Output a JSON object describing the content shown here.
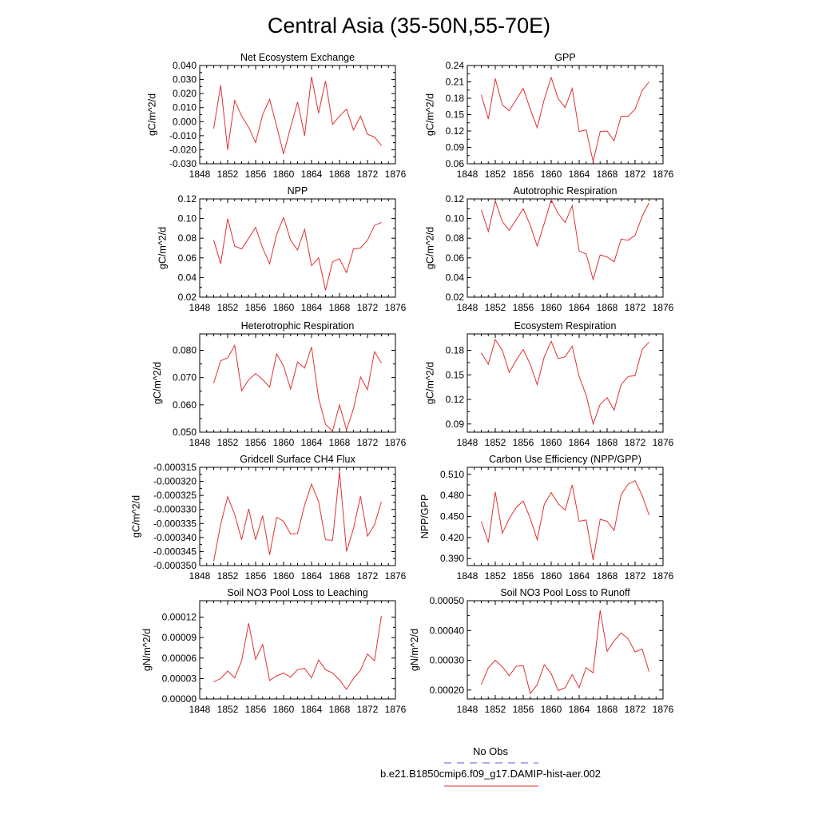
{
  "main_title": "Central Asia (35-50N,55-70E)",
  "legend": {
    "entries": [
      {
        "label": "No Obs",
        "color": "#5a5ad8",
        "dash": true
      },
      {
        "label": "b.e21.B1850cmip6.f09_g17.DAMIP-hist-aer.002",
        "color": "#e03030",
        "dash": false
      }
    ]
  },
  "chart_data": [
    {
      "type": "line",
      "title": "Net Ecosystem Exchange",
      "ylabel": "gC/m^2/d",
      "xlim": [
        1848,
        1876
      ],
      "xticks": [
        1848,
        1852,
        1856,
        1860,
        1864,
        1868,
        1872,
        1876
      ],
      "ylim": [
        -0.03,
        0.04
      ],
      "yticks": [
        "-0.030",
        "-0.020",
        "-0.010",
        "0.000",
        "0.010",
        "0.020",
        "0.030",
        "0.040"
      ],
      "ytick_values": [
        -0.03,
        -0.02,
        -0.01,
        0.0,
        0.01,
        0.02,
        0.03,
        0.04
      ],
      "x": [
        1850,
        1851,
        1852,
        1853,
        1854,
        1855,
        1856,
        1857,
        1858,
        1859,
        1860,
        1861,
        1862,
        1863,
        1864,
        1865,
        1866,
        1867,
        1868,
        1869,
        1870,
        1871,
        1872,
        1873,
        1874
      ],
      "series": [
        {
          "color": "#e03030",
          "values": [
            -0.005,
            0.026,
            -0.02,
            0.015,
            0.004,
            -0.004,
            -0.015,
            0.005,
            0.016,
            -0.003,
            -0.023,
            -0.004,
            0.014,
            -0.01,
            0.032,
            0.006,
            0.029,
            -0.002,
            0.004,
            0.009,
            -0.006,
            0.004,
            -0.009,
            -0.011,
            -0.017
          ]
        }
      ]
    },
    {
      "type": "line",
      "title": "GPP",
      "ylabel": "gC/m^2/d",
      "xlim": [
        1848,
        1876
      ],
      "xticks": [
        1848,
        1852,
        1856,
        1860,
        1864,
        1868,
        1872,
        1876
      ],
      "ylim": [
        0.06,
        0.24
      ],
      "yticks": [
        "0.06",
        "0.09",
        "0.12",
        "0.15",
        "0.18",
        "0.21",
        "0.24"
      ],
      "ytick_values": [
        0.06,
        0.09,
        0.12,
        0.15,
        0.18,
        0.21,
        0.24
      ],
      "x": [
        1850,
        1851,
        1852,
        1853,
        1854,
        1855,
        1856,
        1857,
        1858,
        1859,
        1860,
        1861,
        1862,
        1863,
        1864,
        1865,
        1866,
        1867,
        1868,
        1869,
        1870,
        1871,
        1872,
        1873,
        1874
      ],
      "series": [
        {
          "color": "#e03030",
          "values": [
            0.186,
            0.142,
            0.216,
            0.168,
            0.157,
            0.178,
            0.198,
            0.16,
            0.126,
            0.178,
            0.218,
            0.179,
            0.163,
            0.198,
            0.119,
            0.122,
            0.064,
            0.119,
            0.12,
            0.102,
            0.147,
            0.147,
            0.16,
            0.194,
            0.21
          ]
        }
      ]
    },
    {
      "type": "line",
      "title": "NPP",
      "ylabel": "gC/m^2/d",
      "xlim": [
        1848,
        1876
      ],
      "xticks": [
        1848,
        1852,
        1856,
        1860,
        1864,
        1868,
        1872,
        1876
      ],
      "ylim": [
        0.02,
        0.12
      ],
      "yticks": [
        "0.02",
        "0.04",
        "0.06",
        "0.08",
        "0.10",
        "0.12"
      ],
      "ytick_values": [
        0.02,
        0.04,
        0.06,
        0.08,
        0.1,
        0.12
      ],
      "x": [
        1850,
        1851,
        1852,
        1853,
        1854,
        1855,
        1856,
        1857,
        1858,
        1859,
        1860,
        1861,
        1862,
        1863,
        1864,
        1865,
        1866,
        1867,
        1868,
        1869,
        1870,
        1871,
        1872,
        1873,
        1874
      ],
      "series": [
        {
          "color": "#e03030",
          "values": [
            0.078,
            0.054,
            0.1,
            0.072,
            0.069,
            0.08,
            0.091,
            0.07,
            0.054,
            0.084,
            0.101,
            0.078,
            0.068,
            0.089,
            0.052,
            0.06,
            0.027,
            0.056,
            0.059,
            0.045,
            0.069,
            0.07,
            0.078,
            0.093,
            0.096
          ]
        }
      ]
    },
    {
      "type": "line",
      "title": "Autotrophic Respiration",
      "ylabel": "gC/m^2/d",
      "xlim": [
        1848,
        1876
      ],
      "xticks": [
        1848,
        1852,
        1856,
        1860,
        1864,
        1868,
        1872,
        1876
      ],
      "ylim": [
        0.02,
        0.12
      ],
      "yticks": [
        "0.02",
        "0.04",
        "0.06",
        "0.08",
        "0.10",
        "0.12"
      ],
      "ytick_values": [
        0.02,
        0.04,
        0.06,
        0.08,
        0.1,
        0.12
      ],
      "x": [
        1850,
        1851,
        1852,
        1853,
        1854,
        1855,
        1856,
        1857,
        1858,
        1859,
        1860,
        1861,
        1862,
        1863,
        1864,
        1865,
        1866,
        1867,
        1868,
        1869,
        1870,
        1871,
        1872,
        1873,
        1874
      ],
      "series": [
        {
          "color": "#e03030",
          "values": [
            0.109,
            0.087,
            0.118,
            0.097,
            0.088,
            0.099,
            0.11,
            0.093,
            0.072,
            0.095,
            0.119,
            0.105,
            0.096,
            0.113,
            0.067,
            0.064,
            0.038,
            0.063,
            0.061,
            0.056,
            0.079,
            0.078,
            0.083,
            0.102,
            0.116
          ]
        }
      ]
    },
    {
      "type": "line",
      "title": "Heterotrophic Respiration",
      "ylabel": "gC/m^2/d",
      "xlim": [
        1848,
        1876
      ],
      "xticks": [
        1848,
        1852,
        1856,
        1860,
        1864,
        1868,
        1872,
        1876
      ],
      "ylim": [
        0.05,
        0.086
      ],
      "yticks": [
        "0.050",
        "0.060",
        "0.070",
        "0.080"
      ],
      "ytick_values": [
        0.05,
        0.06,
        0.07,
        0.08
      ],
      "x": [
        1850,
        1851,
        1852,
        1853,
        1854,
        1855,
        1856,
        1857,
        1858,
        1859,
        1860,
        1861,
        1862,
        1863,
        1864,
        1865,
        1866,
        1867,
        1868,
        1869,
        1870,
        1871,
        1872,
        1873,
        1874
      ],
      "series": [
        {
          "color": "#e03030",
          "values": [
            0.068,
            0.0762,
            0.0772,
            0.0818,
            0.0652,
            0.0692,
            0.0715,
            0.0693,
            0.0665,
            0.0787,
            0.0742,
            0.0658,
            0.0757,
            0.0735,
            0.0812,
            0.0625,
            0.0528,
            0.0504,
            0.06,
            0.0508,
            0.0586,
            0.0702,
            0.0656,
            0.0795,
            0.0753
          ]
        }
      ]
    },
    {
      "type": "line",
      "title": "Ecosystem Respiration",
      "ylabel": "gC/m^2/d",
      "xlim": [
        1848,
        1876
      ],
      "xticks": [
        1848,
        1852,
        1856,
        1860,
        1864,
        1868,
        1872,
        1876
      ],
      "ylim": [
        0.08,
        0.2
      ],
      "yticks": [
        "0.09",
        "0.12",
        "0.15",
        "0.18"
      ],
      "ytick_values": [
        0.09,
        0.12,
        0.15,
        0.18
      ],
      "x": [
        1850,
        1851,
        1852,
        1853,
        1854,
        1855,
        1856,
        1857,
        1858,
        1859,
        1860,
        1861,
        1862,
        1863,
        1864,
        1865,
        1866,
        1867,
        1868,
        1869,
        1870,
        1871,
        1872,
        1873,
        1874
      ],
      "series": [
        {
          "color": "#e03030",
          "values": [
            0.177,
            0.163,
            0.193,
            0.18,
            0.153,
            0.168,
            0.181,
            0.163,
            0.138,
            0.172,
            0.191,
            0.17,
            0.172,
            0.185,
            0.148,
            0.125,
            0.09,
            0.114,
            0.122,
            0.107,
            0.138,
            0.148,
            0.149,
            0.181,
            0.19
          ]
        }
      ]
    },
    {
      "type": "line",
      "title": "Gridcell Surface CH4 Flux",
      "ylabel": "gC/m^2/d",
      "xlim": [
        1848,
        1876
      ],
      "xticks": [
        1848,
        1852,
        1856,
        1860,
        1864,
        1868,
        1872,
        1876
      ],
      "ylim": [
        -0.00035,
        -0.000315
      ],
      "yticks": [
        "-0.000350",
        "-0.000345",
        "-0.000340",
        "-0.000335",
        "-0.000330",
        "-0.000325",
        "-0.000320",
        "-0.000315"
      ],
      "ytick_values": [
        -0.00035,
        -0.000345,
        -0.00034,
        -0.000335,
        -0.00033,
        -0.000325,
        -0.00032,
        -0.000315
      ],
      "x": [
        1850,
        1851,
        1852,
        1853,
        1854,
        1855,
        1856,
        1857,
        1858,
        1859,
        1860,
        1861,
        1862,
        1863,
        1864,
        1865,
        1866,
        1867,
        1868,
        1869,
        1870,
        1871,
        1872,
        1873,
        1874
      ],
      "series": [
        {
          "color": "#e03030",
          "values": [
            -0.0003485,
            -0.0003352,
            -0.0003255,
            -0.0003318,
            -0.0003408,
            -0.0003298,
            -0.0003408,
            -0.0003322,
            -0.0003462,
            -0.0003328,
            -0.0003342,
            -0.0003388,
            -0.0003385,
            -0.0003285,
            -0.000321,
            -0.0003272,
            -0.0003408,
            -0.000341,
            -0.0003165,
            -0.000345,
            -0.0003368,
            -0.0003253,
            -0.0003395,
            -0.0003355,
            -0.0003272
          ]
        }
      ]
    },
    {
      "type": "line",
      "title": "Carbon Use Efficiency (NPP/GPP)",
      "ylabel": "NPP/GPP",
      "xlim": [
        1848,
        1876
      ],
      "xticks": [
        1848,
        1852,
        1856,
        1860,
        1864,
        1868,
        1872,
        1876
      ],
      "ylim": [
        0.38,
        0.52
      ],
      "yticks": [
        "0.390",
        "0.420",
        "0.450",
        "0.480",
        "0.510"
      ],
      "ytick_values": [
        0.39,
        0.42,
        0.45,
        0.48,
        0.51
      ],
      "x": [
        1850,
        1851,
        1852,
        1853,
        1854,
        1855,
        1856,
        1857,
        1858,
        1859,
        1860,
        1861,
        1862,
        1863,
        1864,
        1865,
        1866,
        1867,
        1868,
        1869,
        1870,
        1871,
        1872,
        1873,
        1874
      ],
      "series": [
        {
          "color": "#e03030",
          "values": [
            0.443,
            0.413,
            0.485,
            0.426,
            0.447,
            0.463,
            0.472,
            0.447,
            0.417,
            0.467,
            0.484,
            0.468,
            0.459,
            0.495,
            0.443,
            0.445,
            0.388,
            0.446,
            0.443,
            0.43,
            0.481,
            0.496,
            0.501,
            0.48,
            0.452
          ]
        }
      ]
    },
    {
      "type": "line",
      "title": "Soil NO3 Pool Loss to Leaching",
      "ylabel": "gN/m^2/d",
      "xlim": [
        1848,
        1876
      ],
      "xticks": [
        1848,
        1852,
        1856,
        1860,
        1864,
        1868,
        1872,
        1876
      ],
      "ylim": [
        0.0,
        0.000144
      ],
      "yticks": [
        "0.00000",
        "0.00003",
        "0.00006",
        "0.00009",
        "0.00012"
      ],
      "ytick_values": [
        0.0,
        3e-05,
        6e-05,
        9e-05,
        0.00012
      ],
      "x": [
        1850,
        1851,
        1852,
        1853,
        1854,
        1855,
        1856,
        1857,
        1858,
        1859,
        1860,
        1861,
        1862,
        1863,
        1864,
        1865,
        1866,
        1867,
        1868,
        1869,
        1870,
        1871,
        1872,
        1873,
        1874
      ],
      "series": [
        {
          "color": "#e03030",
          "values": [
            2.5e-05,
            3e-05,
            4.1e-05,
            3.1e-05,
            5.6e-05,
            0.000111,
            5.8e-05,
            8e-05,
            2.7e-05,
            3.4e-05,
            3.8e-05,
            3.2e-05,
            4.3e-05,
            4.5e-05,
            3.1e-05,
            5.7e-05,
            4.3e-05,
            3.8e-05,
            2.8e-05,
            1.4e-05,
            3e-05,
            4.2e-05,
            6.6e-05,
            5.6e-05,
            0.000122
          ]
        }
      ]
    },
    {
      "type": "line",
      "title": "Soil NO3 Pool Loss to Runoff",
      "ylabel": "gN/m^2/d",
      "xlim": [
        1848,
        1876
      ],
      "xticks": [
        1848,
        1852,
        1856,
        1860,
        1864,
        1868,
        1872,
        1876
      ],
      "ylim": [
        0.00017,
        0.0005
      ],
      "yticks": [
        "0.00020",
        "0.00030",
        "0.00040",
        "0.00050"
      ],
      "ytick_values": [
        0.0002,
        0.0003,
        0.0004,
        0.0005
      ],
      "x": [
        1850,
        1851,
        1852,
        1853,
        1854,
        1855,
        1856,
        1857,
        1858,
        1859,
        1860,
        1861,
        1862,
        1863,
        1864,
        1865,
        1866,
        1867,
        1868,
        1869,
        1870,
        1871,
        1872,
        1873,
        1874
      ],
      "series": [
        {
          "color": "#e03030",
          "values": [
            0.000218,
            0.000275,
            0.0003,
            0.000278,
            0.000248,
            0.00028,
            0.000282,
            0.000188,
            0.000218,
            0.000285,
            0.000255,
            0.000198,
            0.000208,
            0.000252,
            0.000208,
            0.000275,
            0.000258,
            0.000468,
            0.00033,
            0.000365,
            0.000392,
            0.000372,
            0.000328,
            0.000338,
            0.000262
          ]
        }
      ]
    }
  ]
}
